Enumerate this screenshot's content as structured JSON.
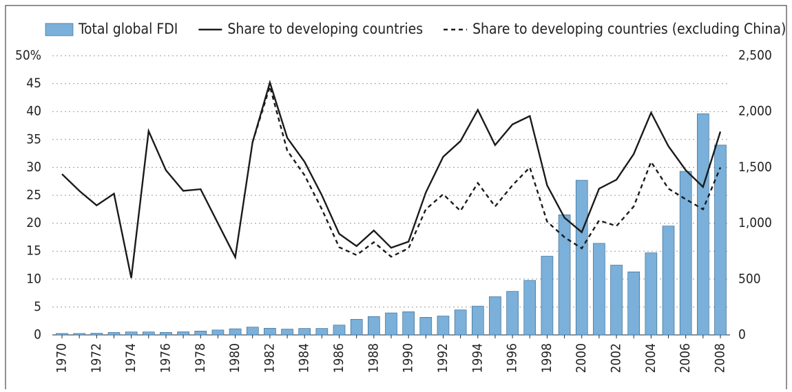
{
  "chart_data": {
    "type": "combo",
    "categories": [
      "1970",
      null,
      "1972",
      null,
      "1974",
      null,
      "1976",
      null,
      "1978",
      null,
      "1980",
      null,
      "1982",
      null,
      "1984",
      null,
      "1986",
      null,
      "1988",
      null,
      "1990",
      null,
      "1992",
      null,
      "1994",
      null,
      "1996",
      null,
      "1998",
      null,
      "2000",
      null,
      "2002",
      null,
      "2004",
      null,
      "2006",
      null,
      "2008"
    ],
    "series": [
      {
        "name": "Total global FDI",
        "kind": "bar",
        "axis": "y2",
        "color": "#7ab0d9",
        "values": [
          13,
          13,
          15,
          22,
          27,
          27,
          23,
          28,
          35,
          44,
          55,
          70,
          60,
          52,
          58,
          58,
          88,
          140,
          165,
          197,
          208,
          158,
          169,
          224,
          258,
          342,
          390,
          488,
          705,
          1076,
          1385,
          820,
          625,
          565,
          735,
          975,
          1465,
          1980,
          1700
        ]
      },
      {
        "name": "Share to developing countries",
        "kind": "line",
        "axis": "y",
        "color": "#1a1a1a",
        "dash": false,
        "values": [
          28.8,
          25.8,
          23.2,
          25.3,
          10.2,
          36.5,
          29.5,
          25.8,
          26.1,
          20,
          13.9,
          34.5,
          45.2,
          35.3,
          31,
          25,
          18.1,
          15.9,
          18.7,
          15.6,
          16.7,
          25.5,
          31.9,
          34.7,
          40.3,
          34,
          37.7,
          39.2,
          26.8,
          21,
          18.4,
          26.2,
          27.8,
          32.4,
          39.8,
          33.8,
          29.5,
          26.5,
          36.4
        ]
      },
      {
        "name": "Share to developing countries (excluding China)",
        "kind": "line",
        "axis": "y",
        "color": "#1a1a1a",
        "dash": true,
        "values": [
          null,
          null,
          null,
          null,
          null,
          null,
          null,
          null,
          null,
          null,
          null,
          34.5,
          44.5,
          33,
          28.6,
          22.5,
          15.7,
          14.3,
          16.6,
          14,
          15.5,
          22.5,
          25.2,
          22.2,
          27.2,
          23,
          26.8,
          30,
          20.3,
          17.5,
          15.5,
          20.5,
          19.5,
          23,
          31,
          26.2,
          24.3,
          22.5,
          30
        ]
      }
    ],
    "ylim": [
      0,
      50
    ],
    "yticks": [
      0,
      5,
      10,
      15,
      20,
      25,
      30,
      35,
      40,
      45,
      {
        "value": 50,
        "label": "50%"
      }
    ],
    "y2lim": [
      0,
      2500
    ],
    "y2ticks": [
      0,
      500,
      {
        "value": 1000,
        "label": "1,000"
      },
      {
        "value": 1500,
        "label": "1,500"
      },
      {
        "value": 2000,
        "label": "2,000"
      },
      {
        "value": 2500,
        "label": "2,500"
      }
    ],
    "grid": true,
    "legend": "top"
  }
}
